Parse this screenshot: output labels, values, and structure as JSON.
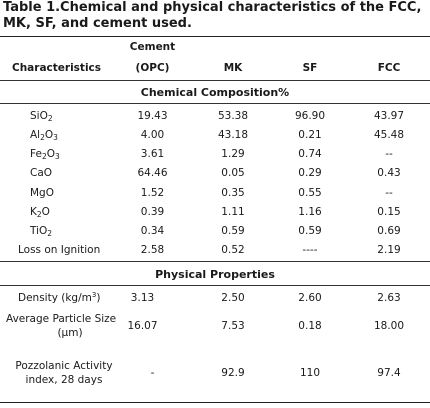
{
  "caption": "Table 1.Chemical and physical characteristics of the FCC, MK, SF, and cement used.",
  "headers": {
    "characteristics": "Characteristics",
    "cement_line1": "Cement",
    "cement_line2": "(OPC)",
    "mk": "MK",
    "sf": "SF",
    "fcc": "FCC"
  },
  "section_chemical": "Chemical Composition%",
  "chemical_rows": [
    {
      "name_main": "SiO",
      "name_sub": "2",
      "name_tail": "",
      "opc": "19.43",
      "mk": "53.38",
      "sf": "96.90",
      "fcc": "43.97"
    },
    {
      "name_main": "Al",
      "name_sub": "2",
      "name_tail": "O",
      "name_sub2": "3",
      "opc": "4.00",
      "mk": "43.18",
      "sf": "0.21",
      "fcc": "45.48"
    },
    {
      "name_main": "Fe",
      "name_sub": "2",
      "name_tail": "O",
      "name_sub2": "3",
      "opc": "3.61",
      "mk": "1.29",
      "sf": "0.74",
      "fcc": "--"
    },
    {
      "name_main": "CaO",
      "opc": "64.46",
      "mk": "0.05",
      "sf": "0.29",
      "fcc": "0.43"
    },
    {
      "name_main": "MgO",
      "opc": "1.52",
      "mk": "0.35",
      "sf": "0.55",
      "fcc": "--"
    },
    {
      "name_main": "K",
      "name_sub": "2",
      "name_tail": "O",
      "opc": "0.39",
      "mk": "1.11",
      "sf": "1.16",
      "fcc": "0.15"
    },
    {
      "name_main": "TiO",
      "name_sub": "2",
      "opc": "0.34",
      "mk": "0.59",
      "sf": "0.59",
      "fcc": "0.69"
    },
    {
      "name_main": "Loss on Ignition",
      "opc": "2.58",
      "mk": "0.52",
      "sf": "----",
      "fcc": "2.19"
    }
  ],
  "section_physical": "Physical Properties",
  "physical_rows": {
    "density": {
      "label": "Density (kg/m",
      "sup": "3",
      "label_end": ")",
      "opc": "3.13",
      "mk": "2.50",
      "sf": "2.60",
      "fcc": "2.63"
    },
    "particle": {
      "label1": "Average Particle Size",
      "label2": "(µm)",
      "opc": "16.07",
      "mk": "7.53",
      "sf": "0.18",
      "fcc": "18.00"
    },
    "pozzolanic": {
      "label1": "Pozzolanic Activity",
      "label2": "index, 28 days",
      "opc": "-",
      "mk": "92.9",
      "sf": "110",
      "fcc": "97.4"
    }
  }
}
